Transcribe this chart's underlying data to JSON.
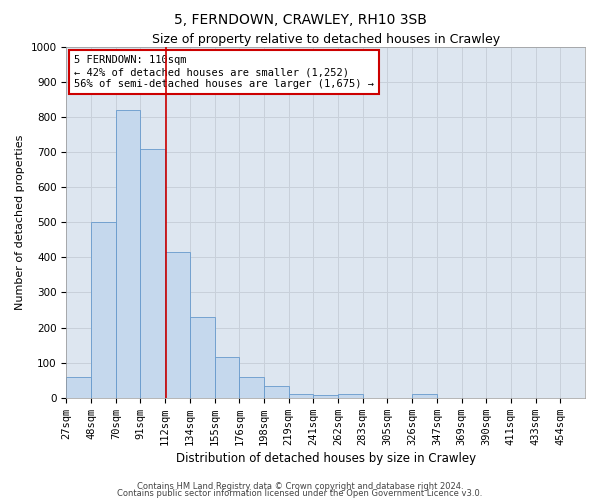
{
  "title1": "5, FERNDOWN, CRAWLEY, RH10 3SB",
  "title2": "Size of property relative to detached houses in Crawley",
  "xlabel": "Distribution of detached houses by size in Crawley",
  "ylabel": "Number of detached properties",
  "footer1": "Contains HM Land Registry data © Crown copyright and database right 2024.",
  "footer2": "Contains public sector information licensed under the Open Government Licence v3.0.",
  "annotation_line1": "5 FERNDOWN: 110sqm",
  "annotation_line2": "← 42% of detached houses are smaller (1,252)",
  "annotation_line3": "56% of semi-detached houses are larger (1,675) →",
  "bar_categories": [
    "27sqm",
    "48sqm",
    "70sqm",
    "91sqm",
    "112sqm",
    "134sqm",
    "155sqm",
    "176sqm",
    "198sqm",
    "219sqm",
    "241sqm",
    "262sqm",
    "283sqm",
    "305sqm",
    "326sqm",
    "347sqm",
    "369sqm",
    "390sqm",
    "411sqm",
    "433sqm",
    "454sqm"
  ],
  "bar_values": [
    60,
    500,
    820,
    710,
    415,
    230,
    115,
    60,
    35,
    12,
    8,
    10,
    0,
    0,
    10,
    0,
    0,
    0,
    0,
    0,
    0
  ],
  "bar_color": "#c5d8ed",
  "bar_edge_color": "#6699cc",
  "vline_color": "#cc0000",
  "annotation_box_edge": "#cc0000",
  "ylim": [
    0,
    1000
  ],
  "yticks": [
    0,
    100,
    200,
    300,
    400,
    500,
    600,
    700,
    800,
    900,
    1000
  ],
  "grid_color": "#c8d0da",
  "background_color": "#dde6f0",
  "title1_fontsize": 10,
  "title2_fontsize": 9,
  "xlabel_fontsize": 8.5,
  "ylabel_fontsize": 8,
  "tick_fontsize": 7.5,
  "annotation_fontsize": 7.5,
  "footer_fontsize": 6
}
